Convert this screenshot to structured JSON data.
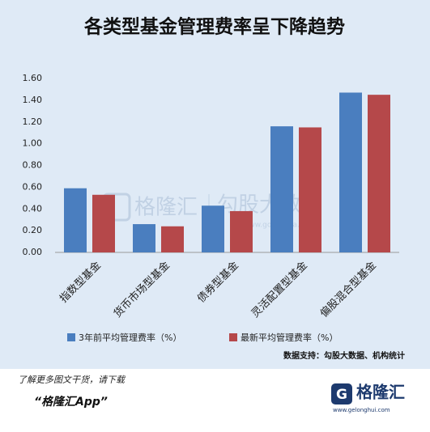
{
  "chart_data": {
    "type": "bar",
    "title": "各类型基金管理费率呈下降趋势",
    "categories": [
      "指数型基金",
      "货币市场型基金",
      "债券型基金",
      "灵活配置型基金",
      "偏股混合型基金"
    ],
    "series": [
      {
        "name": "3年前平均管理费率（%）",
        "color": "#4a7ebf",
        "values": [
          0.59,
          0.26,
          0.43,
          1.16,
          1.47
        ]
      },
      {
        "name": "最新平均管理费率（%）",
        "color": "#b5484a",
        "values": [
          0.53,
          0.24,
          0.38,
          1.15,
          1.45
        ]
      }
    ],
    "ylim": [
      0,
      1.6
    ],
    "yticks": [
      {
        "value": 0,
        "label": "0.00"
      },
      {
        "value": 0.2,
        "label": "0.20"
      },
      {
        "value": 0.4,
        "label": "0.40"
      },
      {
        "value": 0.6,
        "label": "0.60"
      },
      {
        "value": 0.8,
        "label": "0.80"
      },
      {
        "value": 1,
        "label": "1.00"
      },
      {
        "value": 1.2,
        "label": "1.20"
      },
      {
        "value": 1.4,
        "label": "1.40"
      },
      {
        "value": 1.6,
        "label": "1.60"
      }
    ],
    "grid": false,
    "source": "数据支持：勾股大数据、机构统计",
    "watermark": [
      "格隆汇",
      "勾股大数据",
      "www.gogudata.com"
    ]
  },
  "footer": {
    "prompt": "了解更多图文干货，请下载",
    "app": "“格隆汇App”",
    "logo": "格隆汇",
    "url": "www.gelonghui.com"
  }
}
